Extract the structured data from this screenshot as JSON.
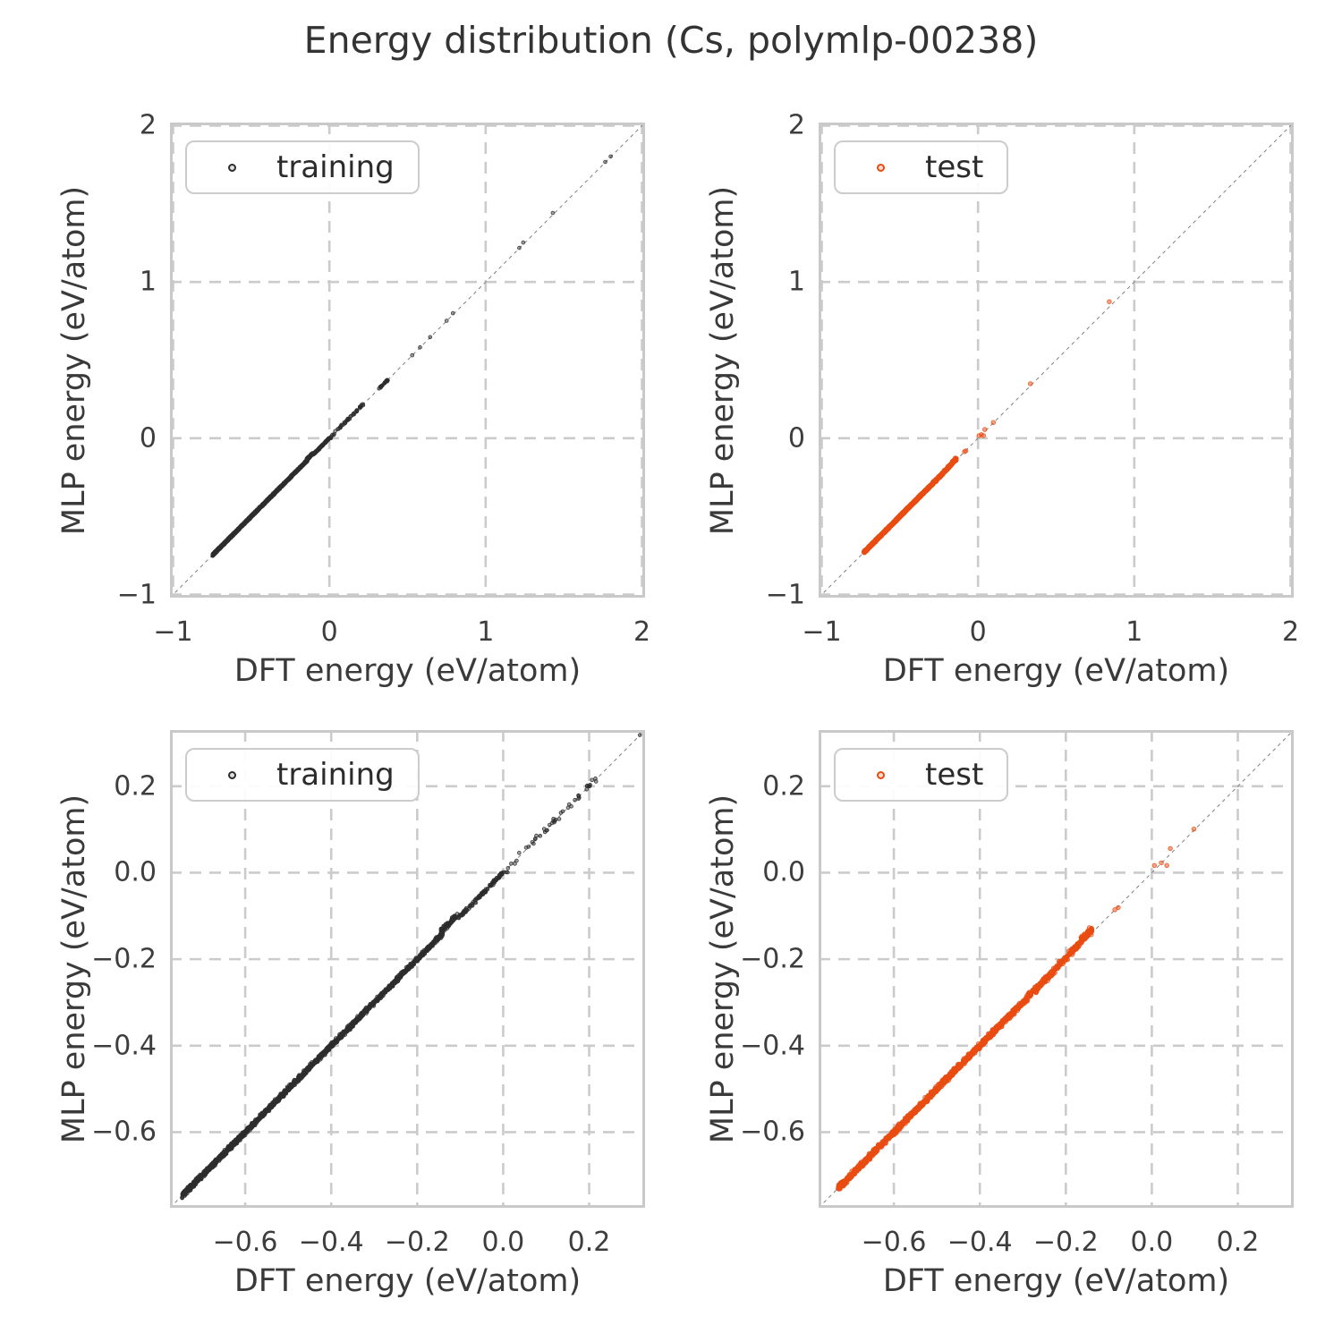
{
  "title": "Energy distribution (Cs, polymlp-00238)",
  "colors": {
    "training": "#2d2d2d",
    "test": "#e94c12",
    "grid": "#cbcbcb",
    "frame": "#c9c9c9",
    "diagonal": "#7f7f7f",
    "title_text": "#333333",
    "axis_label_text": "#3a3a3a",
    "tick_text": "#3d3d3d",
    "legend_border": "#cccccc"
  },
  "datasets": {
    "training": {
      "color": "#2d2d2d",
      "fill": "rgba(45,45,45,0.45)",
      "legend_fill": "rgba(45,45,45,0.15)",
      "dense_segments": [
        {
          "x0": -0.747,
          "x1": -0.55,
          "n": 900,
          "sd": 0.0028
        },
        {
          "x0": -0.55,
          "x1": -0.3,
          "n": 800,
          "sd": 0.0028
        },
        {
          "x0": -0.3,
          "x1": -0.14,
          "n": 420,
          "sd": 0.0026
        },
        {
          "x0": -0.145,
          "x1": -0.105,
          "n": 70,
          "dy": 0.009,
          "sd": 0.0035
        },
        {
          "x0": -0.105,
          "x1": -0.002,
          "n": 110,
          "sd": 0.0024
        },
        {
          "x0": 0.0,
          "x1": 0.1,
          "n": 18,
          "sd": 0.004
        },
        {
          "x0": 0.1,
          "x1": 0.228,
          "n": 30,
          "sd": 0.004
        },
        {
          "x0": 0.325,
          "x1": 0.375,
          "n": 22,
          "sd": 0.0028
        }
      ],
      "outlier_points": [
        [
          0.318,
          0.3185
        ],
        [
          0.53,
          0.531
        ],
        [
          0.58,
          0.582
        ],
        [
          0.645,
          0.647
        ],
        [
          0.75,
          0.752
        ],
        [
          0.79,
          0.8
        ],
        [
          1.215,
          1.218
        ],
        [
          1.24,
          1.252
        ],
        [
          1.43,
          1.442
        ],
        [
          1.765,
          1.768
        ],
        [
          1.8,
          1.803
        ]
      ]
    },
    "test": {
      "color": "#e94c12",
      "fill": "rgba(233,76,18,0.5)",
      "legend_fill": "rgba(233,76,18,0.2)",
      "dense_segments": [
        {
          "x0": -0.73,
          "x1": -0.45,
          "n": 850,
          "sd": 0.003
        },
        {
          "x0": -0.45,
          "x1": -0.3,
          "n": 420,
          "sd": 0.003
        },
        {
          "x0": -0.3,
          "x1": -0.225,
          "n": 150,
          "sd": 0.0035
        },
        {
          "x0": -0.225,
          "x1": -0.168,
          "n": 90,
          "dy": 0.003,
          "sd": 0.004
        },
        {
          "x0": -0.165,
          "x1": -0.138,
          "n": 70,
          "dy": 0.007,
          "sd": 0.0045
        }
      ],
      "outlier_points": [
        [
          -0.086,
          -0.0855
        ],
        [
          -0.078,
          -0.0805
        ],
        [
          0.006,
          0.017
        ],
        [
          0.022,
          0.023
        ],
        [
          0.035,
          0.017
        ],
        [
          0.043,
          0.056
        ],
        [
          0.098,
          0.101
        ],
        [
          0.335,
          0.349
        ],
        [
          0.84,
          0.874
        ]
      ]
    }
  },
  "chart_data": [
    {
      "type": "scatter",
      "dataset": "training",
      "legend": "training",
      "legend_loc": "upper left",
      "grid": true,
      "diagonal": true,
      "xlabel": "DFT energy (eV/atom)",
      "ylabel": "MLP energy (eV/atom)",
      "xlim": [
        -1.02,
        2.02
      ],
      "ylim": [
        -1.02,
        2.02
      ],
      "xticks": {
        "values": [
          -1,
          0,
          1,
          2
        ],
        "labels": [
          "−1",
          "0",
          "1",
          "2"
        ]
      },
      "yticks": {
        "values": [
          -1,
          0,
          1,
          2
        ],
        "labels": [
          "−1",
          "0",
          "1",
          "2"
        ]
      }
    },
    {
      "type": "scatter",
      "dataset": "test",
      "legend": "test",
      "legend_loc": "upper left",
      "grid": true,
      "diagonal": true,
      "xlabel": "DFT energy (eV/atom)",
      "ylabel": "MLP energy (eV/atom)",
      "xlim": [
        -1.02,
        2.02
      ],
      "ylim": [
        -1.02,
        2.02
      ],
      "xticks": {
        "values": [
          -1,
          0,
          1,
          2
        ],
        "labels": [
          "−1",
          "0",
          "1",
          "2"
        ]
      },
      "yticks": {
        "values": [
          -1,
          0,
          1,
          2
        ],
        "labels": [
          "−1",
          "0",
          "1",
          "2"
        ]
      }
    },
    {
      "type": "scatter",
      "dataset": "training",
      "legend": "training",
      "legend_loc": "upper left",
      "grid": true,
      "diagonal": true,
      "xlabel": "DFT energy (eV/atom)",
      "ylabel": "MLP energy (eV/atom)",
      "xlim": [
        -0.775,
        0.33
      ],
      "ylim": [
        -0.775,
        0.33
      ],
      "xticks": {
        "values": [
          -0.6,
          -0.4,
          -0.2,
          0.0,
          0.2
        ],
        "labels": [
          "−0.6",
          "−0.4",
          "−0.2",
          "0.0",
          "0.2"
        ]
      },
      "yticks": {
        "values": [
          -0.6,
          -0.4,
          -0.2,
          0.0,
          0.2
        ],
        "labels": [
          "−0.6",
          "−0.4",
          "−0.2",
          "0.0",
          "0.2"
        ]
      }
    },
    {
      "type": "scatter",
      "dataset": "test",
      "legend": "test",
      "legend_loc": "upper left",
      "grid": true,
      "diagonal": true,
      "xlabel": "DFT energy (eV/atom)",
      "ylabel": "MLP energy (eV/atom)",
      "xlim": [
        -0.775,
        0.33
      ],
      "ylim": [
        -0.775,
        0.33
      ],
      "xticks": {
        "values": [
          -0.6,
          -0.4,
          -0.2,
          0.0,
          0.2
        ],
        "labels": [
          "−0.6",
          "−0.4",
          "−0.2",
          "0.0",
          "0.2"
        ]
      },
      "yticks": {
        "values": [
          -0.6,
          -0.4,
          -0.2,
          0.0,
          0.2
        ],
        "labels": [
          "−0.6",
          "−0.4",
          "−0.2",
          "0.0",
          "0.2"
        ]
      }
    }
  ]
}
